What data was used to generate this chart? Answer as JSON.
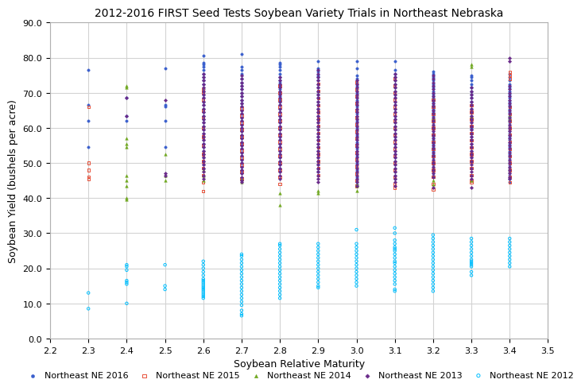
{
  "title": "2012-2016 FIRST Seed Tests Soybean Variety Trials in Northeast Nebraska",
  "xlabel": "Soybean Relative Maturity",
  "ylabel": "Soybean Yield (bushels per acre)",
  "xlim": [
    2.2,
    3.5
  ],
  "ylim": [
    0.0,
    90.0
  ],
  "xticks": [
    2.2,
    2.3,
    2.4,
    2.5,
    2.6,
    2.7,
    2.8,
    2.9,
    3.0,
    3.1,
    3.2,
    3.3,
    3.4,
    3.5
  ],
  "yticks": [
    0.0,
    10.0,
    20.0,
    30.0,
    40.0,
    50.0,
    60.0,
    70.0,
    80.0,
    90.0
  ],
  "series": {
    "NE2016": {
      "label": "Northeast NE 2016",
      "color": "#3a5fcd",
      "marker": "o",
      "filled": true,
      "size": 6,
      "data": {
        "2.3": [
          76.5,
          66.5,
          62.0,
          54.5
        ],
        "2.4": [
          68.5,
          63.5,
          62.0
        ],
        "2.5": [
          77.0,
          66.5,
          66.0,
          62.0,
          54.5
        ],
        "2.6": [
          80.5,
          78.5,
          78.0,
          77.5,
          76.5,
          75.5,
          74.5,
          73.5,
          72.5,
          71.0,
          70.5,
          69.5,
          68.5,
          67.5,
          66.5,
          65.5,
          64.5,
          63.5,
          62.5,
          61.5,
          60.5,
          59.5,
          58.5,
          57.5,
          56.5,
          55.5,
          54.5,
          53.5,
          52.5,
          51.5,
          50.5,
          49.5,
          48.5
        ],
        "2.7": [
          81.0,
          77.5,
          76.5,
          75.5,
          74.0,
          73.0,
          72.0,
          71.0,
          70.0,
          69.0,
          68.0,
          67.0,
          66.0,
          65.0,
          64.0,
          63.0,
          62.0,
          61.0,
          60.0,
          59.0,
          58.0,
          57.0,
          56.0,
          55.0,
          54.0,
          53.0,
          52.0,
          51.0,
          50.0,
          49.0,
          48.0,
          47.0
        ],
        "2.8": [
          78.5,
          78.0,
          77.5,
          76.5,
          75.5,
          74.5,
          73.5,
          73.0,
          72.0,
          71.0,
          70.0,
          69.0,
          68.0,
          67.5,
          66.5,
          65.5,
          64.5,
          63.5,
          62.5,
          61.5,
          60.5,
          59.5,
          58.5,
          57.5,
          56.5,
          55.5,
          54.5,
          53.5,
          52.5,
          51.5,
          50.5,
          49.5,
          48.5,
          47.5
        ],
        "2.9": [
          79.0,
          77.0,
          76.0,
          75.0,
          74.5,
          73.5,
          72.5,
          71.5,
          70.5,
          69.5,
          68.5,
          67.5,
          66.5,
          65.5,
          64.5,
          63.5,
          62.5,
          61.5,
          60.5,
          59.5,
          58.5,
          57.5,
          56.5,
          55.5,
          54.5,
          53.5,
          52.5,
          51.5,
          50.5,
          49.5,
          48.5,
          47.5
        ],
        "3.0": [
          79.0,
          77.0,
          75.0,
          74.0,
          73.0,
          72.0,
          71.0,
          70.0,
          69.0,
          68.0,
          67.0,
          66.0,
          65.0,
          64.0,
          63.0,
          62.0,
          61.0,
          60.0,
          59.0,
          58.0,
          57.0,
          56.0,
          55.0,
          54.0,
          53.0,
          52.0,
          51.0,
          50.0,
          49.0,
          48.0,
          47.0,
          46.0,
          45.0,
          44.0,
          43.5
        ],
        "3.1": [
          79.0,
          76.5,
          75.5,
          74.5,
          73.5,
          72.5,
          71.5,
          70.5,
          69.5,
          68.5,
          67.5,
          66.5,
          65.5,
          64.5,
          63.5,
          62.5,
          61.5,
          60.5,
          59.5,
          58.5,
          57.5,
          56.5,
          55.5,
          54.5,
          53.5,
          52.5,
          51.5,
          50.5,
          49.5,
          48.5,
          47.5,
          46.5,
          45.5
        ],
        "3.2": [
          76.0,
          75.5,
          74.5,
          73.5,
          72.5,
          71.5,
          70.5,
          69.5,
          68.5,
          67.5,
          66.5,
          65.5,
          64.5,
          63.5,
          62.5,
          61.5,
          60.5,
          59.5,
          58.5,
          57.5,
          56.5,
          55.5,
          54.5,
          53.5,
          52.5,
          51.5,
          50.5,
          49.5,
          48.5,
          47.5,
          46.5,
          65.0,
          60.0
        ],
        "3.3": [
          75.0,
          74.5,
          73.5,
          72.5,
          71.5,
          70.5,
          69.5,
          68.5,
          67.5,
          66.5,
          65.5,
          64.5,
          63.5,
          62.5,
          61.5,
          60.5,
          59.5,
          58.5,
          57.5,
          56.5,
          55.5,
          54.5,
          53.5,
          52.5,
          51.5,
          50.5,
          60.0,
          65.0
        ],
        "3.4": [
          75.5,
          74.5,
          73.5,
          72.5,
          71.5,
          70.5,
          69.5,
          68.5,
          67.5,
          66.5,
          65.5,
          64.5,
          63.5,
          62.5,
          61.5,
          60.5,
          59.5,
          58.5,
          57.5,
          56.5,
          55.5,
          54.5,
          53.5,
          52.5,
          51.5,
          50.5,
          49.5,
          48.5,
          47.5,
          46.5,
          45.5,
          44.5
        ]
      }
    },
    "NE2015": {
      "label": "Northeast NE 2015",
      "color": "#e8513a",
      "marker": "s",
      "filled": false,
      "size": 6,
      "data": {
        "2.3": [
          66.0,
          50.0,
          48.0,
          46.0,
          45.5
        ],
        "2.4": [],
        "2.5": [],
        "2.6": [
          71.0,
          70.0,
          42.0,
          68.0,
          65.0,
          63.0,
          60.0,
          57.5,
          55.0,
          52.5,
          50.5,
          48.5,
          46.5,
          44.5
        ],
        "2.7": [
          65.5,
          63.5,
          61.5,
          59.5,
          57.5,
          55.5,
          53.5,
          51.5,
          49.5,
          47.5,
          45.5
        ],
        "2.8": [
          72.0,
          70.0,
          68.0,
          66.0,
          64.0,
          62.0,
          60.0,
          58.0,
          56.0,
          54.0,
          52.0,
          50.0,
          48.0,
          46.0,
          44.0
        ],
        "2.9": [
          72.5,
          70.5,
          68.5,
          66.5,
          64.5,
          62.5,
          60.5,
          58.5,
          56.5,
          54.5,
          52.5,
          50.5,
          48.5,
          46.5
        ],
        "3.0": [
          73.0,
          71.0,
          69.0,
          67.0,
          65.0,
          63.0,
          61.0,
          59.0,
          57.0,
          55.0,
          53.0,
          51.0,
          49.0,
          47.0,
          45.0,
          43.5
        ],
        "3.1": [
          74.0,
          72.0,
          70.0,
          68.0,
          66.0,
          64.0,
          62.0,
          60.0,
          58.0,
          56.0,
          54.0,
          52.0,
          50.0,
          48.0,
          46.0,
          44.0,
          43.0
        ],
        "3.2": [
          68.0,
          66.0,
          64.0,
          62.0,
          60.0,
          58.0,
          56.0,
          54.0,
          52.0,
          50.0,
          48.0,
          46.0,
          44.0,
          42.5
        ],
        "3.3": [
          66.5,
          64.5,
          62.5,
          60.5,
          58.5,
          56.5,
          54.5,
          52.5,
          50.5,
          48.5,
          46.5,
          44.5,
          45.0
        ],
        "3.4": [
          76.0,
          75.0,
          74.0,
          66.0,
          64.0,
          62.0,
          60.0,
          58.0,
          56.0,
          54.0,
          52.0,
          50.0,
          48.0,
          46.0,
          44.5
        ]
      }
    },
    "NE2014": {
      "label": "Northeast NE 2014",
      "color": "#70a820",
      "marker": "^",
      "filled": true,
      "size": 7,
      "data": {
        "2.3": [],
        "2.4": [
          72.0,
          71.5,
          57.0,
          55.5,
          54.5,
          46.5,
          45.0,
          43.5,
          40.0,
          39.5
        ],
        "2.5": [
          52.5,
          46.5,
          45.0
        ],
        "2.6": [
          48.0,
          46.5,
          45.0
        ],
        "2.7": [
          45.5,
          44.5
        ],
        "2.8": [
          41.5,
          38.0
        ],
        "2.9": [
          42.0,
          41.5
        ],
        "3.0": [
          44.0,
          43.5,
          42.0
        ],
        "3.1": [],
        "3.2": [
          63.0,
          45.0,
          44.0
        ],
        "3.3": [
          78.0,
          77.5,
          63.5,
          45.0
        ],
        "3.4": [
          63.5,
          62.5
        ]
      }
    },
    "NE2013": {
      "label": "Northeast NE 2013",
      "color": "#6a2b8a",
      "marker": "D",
      "filled": true,
      "size": 5,
      "data": {
        "2.3": [],
        "2.4": [
          68.5,
          63.5
        ],
        "2.5": [
          68.0,
          47.0,
          46.5
        ],
        "2.6": [
          75.5,
          74.5,
          73.5,
          72.5,
          71.5,
          70.5,
          69.5,
          68.5,
          67.5,
          66.5,
          65.5,
          64.5,
          63.5,
          62.5,
          61.5,
          60.5,
          59.5,
          58.5,
          57.5,
          56.5,
          55.5,
          54.5,
          53.5,
          52.5,
          51.5,
          50.5,
          49.5,
          48.5,
          47.5,
          46.5,
          45.5
        ],
        "2.7": [
          75.0,
          74.0,
          73.0,
          72.0,
          71.0,
          70.0,
          69.0,
          68.0,
          67.0,
          66.0,
          65.0,
          64.0,
          63.0,
          62.0,
          61.0,
          60.0,
          59.0,
          58.0,
          57.0,
          56.0,
          55.0,
          54.0,
          53.0,
          52.0,
          51.0,
          50.0,
          49.0,
          48.0,
          47.0,
          46.0,
          45.0,
          44.5
        ],
        "2.8": [
          74.5,
          73.5,
          72.5,
          71.5,
          70.5,
          69.5,
          68.5,
          67.5,
          66.5,
          65.5,
          64.5,
          63.5,
          62.5,
          61.5,
          60.5,
          59.5,
          58.5,
          57.5,
          56.5,
          55.5,
          54.5,
          53.5,
          52.5,
          51.5,
          50.5,
          49.5,
          48.5,
          47.5,
          46.5,
          45.5
        ],
        "2.9": [
          76.5,
          75.5,
          74.5,
          73.5,
          72.5,
          71.5,
          70.5,
          69.5,
          68.5,
          67.5,
          66.5,
          65.5,
          64.5,
          63.5,
          62.5,
          61.5,
          60.5,
          59.5,
          58.5,
          57.5,
          56.5,
          55.5,
          54.5,
          53.5,
          52.5,
          51.5,
          50.5,
          49.5,
          48.5,
          47.5,
          46.5,
          45.5,
          44.5
        ],
        "3.0": [
          73.5,
          72.5,
          71.5,
          70.5,
          69.5,
          68.5,
          67.5,
          66.5,
          65.5,
          64.5,
          63.5,
          62.5,
          61.5,
          60.5,
          59.5,
          58.5,
          57.5,
          56.5,
          55.5,
          54.5,
          53.5,
          52.5,
          51.5,
          50.5,
          49.5,
          48.5,
          47.5,
          46.5,
          45.5,
          44.5,
          43.5
        ],
        "3.1": [
          75.5,
          74.5,
          73.5,
          72.5,
          71.5,
          70.5,
          69.5,
          68.5,
          67.5,
          66.5,
          65.5,
          64.5,
          63.5,
          62.5,
          61.5,
          60.5,
          59.5,
          58.5,
          57.5,
          56.5,
          55.5,
          54.5,
          53.5,
          52.5,
          51.5,
          50.5,
          49.5,
          48.5,
          47.5,
          46.5,
          45.5,
          44.5,
          43.5
        ],
        "3.2": [
          75.0,
          74.0,
          73.0,
          72.0,
          71.0,
          70.0,
          69.0,
          68.0,
          67.0,
          66.0,
          65.0,
          64.0,
          63.0,
          62.0,
          61.0,
          60.0,
          59.0,
          58.0,
          57.0,
          56.0,
          55.0,
          54.0,
          53.0,
          52.0,
          51.0,
          50.0,
          49.0,
          48.0,
          47.0,
          46.0,
          43.0
        ],
        "3.3": [
          71.5,
          70.5,
          69.5,
          68.5,
          67.5,
          66.5,
          65.5,
          64.5,
          63.5,
          62.5,
          61.5,
          60.5,
          59.5,
          58.5,
          57.5,
          56.5,
          55.5,
          54.5,
          53.5,
          52.5,
          51.5,
          50.5,
          49.5,
          48.5,
          47.5,
          46.5,
          45.5,
          43.0
        ],
        "3.4": [
          72.0,
          71.0,
          70.0,
          69.0,
          68.0,
          67.0,
          66.0,
          65.0,
          64.0,
          63.0,
          62.0,
          61.0,
          60.0,
          59.0,
          58.0,
          57.0,
          56.0,
          55.0,
          54.0,
          53.0,
          52.0,
          51.0,
          50.0,
          49.0,
          48.0,
          47.0,
          46.0,
          45.5,
          79.0,
          80.0
        ]
      }
    },
    "NE2012": {
      "label": "Northeast NE 2012",
      "color": "#00bfff",
      "marker": "o",
      "filled": false,
      "size": 6,
      "data": {
        "2.3": [
          13.0,
          8.5
        ],
        "2.4": [
          21.0,
          20.5,
          19.5,
          16.5,
          16.0,
          15.5,
          10.0
        ],
        "2.5": [
          21.0,
          15.0,
          14.0
        ],
        "2.6": [
          22.0,
          21.0,
          20.0,
          19.0,
          18.0,
          17.0,
          16.5,
          16.0,
          15.5,
          15.0,
          14.5,
          14.0,
          13.5,
          13.0,
          12.5,
          12.0,
          11.5
        ],
        "2.7": [
          24.0,
          23.5,
          22.5,
          21.5,
          20.5,
          19.5,
          18.5,
          17.5,
          16.5,
          15.5,
          14.5,
          13.5,
          12.5,
          11.5,
          10.5,
          9.5,
          8.0,
          7.0,
          6.5
        ],
        "2.8": [
          27.0,
          26.5,
          25.5,
          24.5,
          23.5,
          22.5,
          21.5,
          20.5,
          19.5,
          18.5,
          17.5,
          16.5,
          15.5,
          14.5,
          13.5,
          12.5,
          11.5
        ],
        "2.9": [
          27.0,
          26.0,
          25.0,
          24.0,
          23.0,
          22.0,
          21.0,
          20.0,
          19.0,
          18.0,
          17.0,
          16.0,
          15.0,
          14.5
        ],
        "3.0": [
          31.0,
          27.0,
          26.0,
          25.0,
          24.0,
          23.0,
          22.0,
          21.0,
          20.0,
          19.0,
          18.0,
          17.0,
          16.0,
          15.0
        ],
        "3.1": [
          31.5,
          30.0,
          28.0,
          27.0,
          26.0,
          25.5,
          25.0,
          24.0,
          23.0,
          22.0,
          21.5,
          20.5,
          19.5,
          18.5,
          17.5,
          16.5,
          15.5,
          14.0,
          13.5
        ],
        "3.2": [
          29.5,
          28.5,
          27.5,
          26.5,
          25.5,
          24.5,
          23.5,
          22.5,
          21.5,
          20.5,
          19.5,
          18.5,
          17.5,
          16.5,
          15.5,
          14.5,
          13.5
        ],
        "3.3": [
          28.5,
          27.5,
          26.5,
          25.5,
          24.5,
          23.5,
          22.5,
          21.5,
          20.5,
          21.0,
          22.0,
          19.0,
          18.0
        ],
        "3.4": [
          28.5,
          27.5,
          26.5,
          25.5,
          24.5,
          23.5,
          22.5,
          21.5,
          20.5
        ]
      }
    }
  },
  "background_color": "#ffffff",
  "grid_color": "#d3d3d3",
  "title_fontsize": 10,
  "label_fontsize": 9,
  "tick_fontsize": 8,
  "legend_fontsize": 8
}
